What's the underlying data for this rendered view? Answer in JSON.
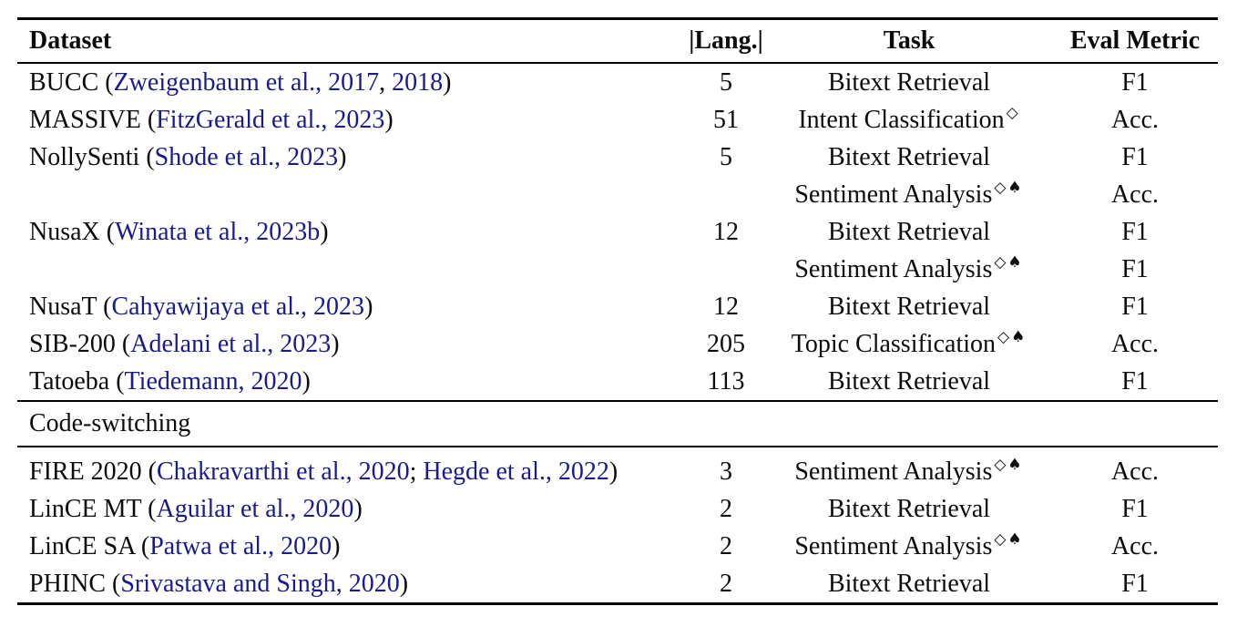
{
  "page": {
    "background": "#ffffff",
    "text_color": "#0c0c0c",
    "rule_color": "#000000",
    "link_color": "#1a1a8c"
  },
  "table": {
    "headers": {
      "dataset": "Dataset",
      "langs": "|Lang.|",
      "task": "Task",
      "metric": "Eval Metric"
    },
    "footnote_marks": {
      "diamond": "◇",
      "spade": "♠"
    },
    "sections": [
      {
        "label": "",
        "rows": [
          {
            "dataset": [
              {
                "t": "BUCC ("
              },
              {
                "t": "Zweigenbaum et al., 2017",
                "link": true
              },
              {
                "t": ", "
              },
              {
                "t": "2018",
                "link": true
              },
              {
                "t": ")"
              }
            ],
            "langs": "5",
            "task": "Bitext Retrieval",
            "sup": "",
            "metric": "F1"
          },
          {
            "dataset": [
              {
                "t": "MASSIVE ("
              },
              {
                "t": "FitzGerald et al., 2023",
                "link": true
              },
              {
                "t": ")"
              }
            ],
            "langs": "51",
            "task": "Intent Classification",
            "sup": "◇",
            "metric": "Acc."
          },
          {
            "dataset": [
              {
                "t": "NollySenti ("
              },
              {
                "t": "Shode et al., 2023",
                "link": true
              },
              {
                "t": ")"
              }
            ],
            "langs": "5",
            "task": "Bitext Retrieval",
            "sup": "",
            "metric": "F1"
          },
          {
            "dataset": [],
            "langs": "",
            "task": "Sentiment Analysis",
            "sup": "◇♠",
            "metric": "Acc."
          },
          {
            "dataset": [
              {
                "t": "NusaX ("
              },
              {
                "t": "Winata et al., 2023b",
                "link": true
              },
              {
                "t": ")"
              }
            ],
            "langs": "12",
            "task": "Bitext Retrieval",
            "sup": "",
            "metric": "F1"
          },
          {
            "dataset": [],
            "langs": "",
            "task": "Sentiment Analysis",
            "sup": "◇♠",
            "metric": "F1"
          },
          {
            "dataset": [
              {
                "t": "NusaT ("
              },
              {
                "t": "Cahyawijaya et al., 2023",
                "link": true
              },
              {
                "t": ")"
              }
            ],
            "langs": "12",
            "task": "Bitext Retrieval",
            "sup": "",
            "metric": "F1"
          },
          {
            "dataset": [
              {
                "t": "SIB-200 ("
              },
              {
                "t": "Adelani et al., 2023",
                "link": true
              },
              {
                "t": ")"
              }
            ],
            "langs": "205",
            "task": "Topic Classification",
            "sup": "◇♠",
            "metric": "Acc."
          },
          {
            "dataset": [
              {
                "t": "Tatoeba ("
              },
              {
                "t": "Tiedemann, 2020",
                "link": true
              },
              {
                "t": ")"
              }
            ],
            "langs": "113",
            "task": "Bitext Retrieval",
            "sup": "",
            "metric": "F1"
          }
        ]
      },
      {
        "label": "Code-switching",
        "rows": [
          {
            "dataset": [
              {
                "t": "FIRE 2020 ("
              },
              {
                "t": "Chakravarthi et al., 2020",
                "link": true
              },
              {
                "t": "; "
              },
              {
                "t": "Hegde et al., 2022",
                "link": true
              },
              {
                "t": ")"
              }
            ],
            "langs": "3",
            "task": "Sentiment Analysis",
            "sup": "◇♠",
            "metric": "Acc."
          },
          {
            "dataset": [
              {
                "t": "LinCE MT ("
              },
              {
                "t": "Aguilar et al., 2020",
                "link": true
              },
              {
                "t": ")"
              }
            ],
            "langs": "2",
            "task": "Bitext Retrieval",
            "sup": "",
            "metric": "F1"
          },
          {
            "dataset": [
              {
                "t": "LinCE SA ("
              },
              {
                "t": "Patwa et al., 2020",
                "link": true
              },
              {
                "t": ")"
              }
            ],
            "langs": "2",
            "task": "Sentiment Analysis",
            "sup": "◇♠",
            "metric": "Acc."
          },
          {
            "dataset": [
              {
                "t": "PHINC ("
              },
              {
                "t": "Srivastava and Singh, 2020",
                "link": true
              },
              {
                "t": ")"
              }
            ],
            "langs": "2",
            "task": "Bitext Retrieval",
            "sup": "",
            "metric": "F1"
          }
        ]
      }
    ]
  }
}
